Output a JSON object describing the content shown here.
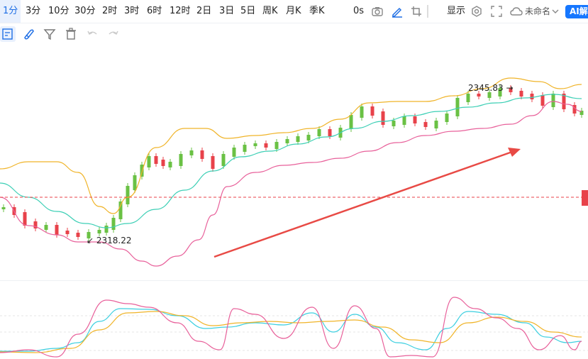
{
  "toolbar": {
    "periods": [
      {
        "label": "1分",
        "active": true
      },
      {
        "label": "3分"
      },
      {
        "label": "10分"
      },
      {
        "label": "30分"
      },
      {
        "label": "2时"
      },
      {
        "label": "3时"
      },
      {
        "label": "6时"
      },
      {
        "label": "12时"
      },
      {
        "label": "2日"
      },
      {
        "label": "3日"
      },
      {
        "label": "5日"
      },
      {
        "label": "周K"
      },
      {
        "label": "月K"
      },
      {
        "label": "季K"
      }
    ],
    "countdown": "0s",
    "display_label": "显示",
    "untitled_label": "未命名",
    "ai_label": "AI解",
    "icons": [
      "camera-icon",
      "pen-icon",
      "crop-icon",
      "settings-icon",
      "fullscreen-icon",
      "cloud-icon",
      "chevron-down-icon"
    ]
  },
  "tools": [
    "note-icon",
    "magnet-icon",
    "filter-icon",
    "delete-icon",
    "undo-icon",
    "redo-icon"
  ],
  "annotations": {
    "low_price": "2318.22",
    "high_price": "2345.83"
  },
  "colors": {
    "up": "#6ac144",
    "down": "#e8424a",
    "boll_upper": "#f0b429",
    "boll_mid": "#3ccfb5",
    "boll_lower": "#e8609a",
    "arrow": "#e84a45",
    "kdj_k": "#3ccfe0",
    "kdj_d": "#f0b429",
    "kdj_j": "#e8609a",
    "accent": "#1f6fe5"
  }
}
